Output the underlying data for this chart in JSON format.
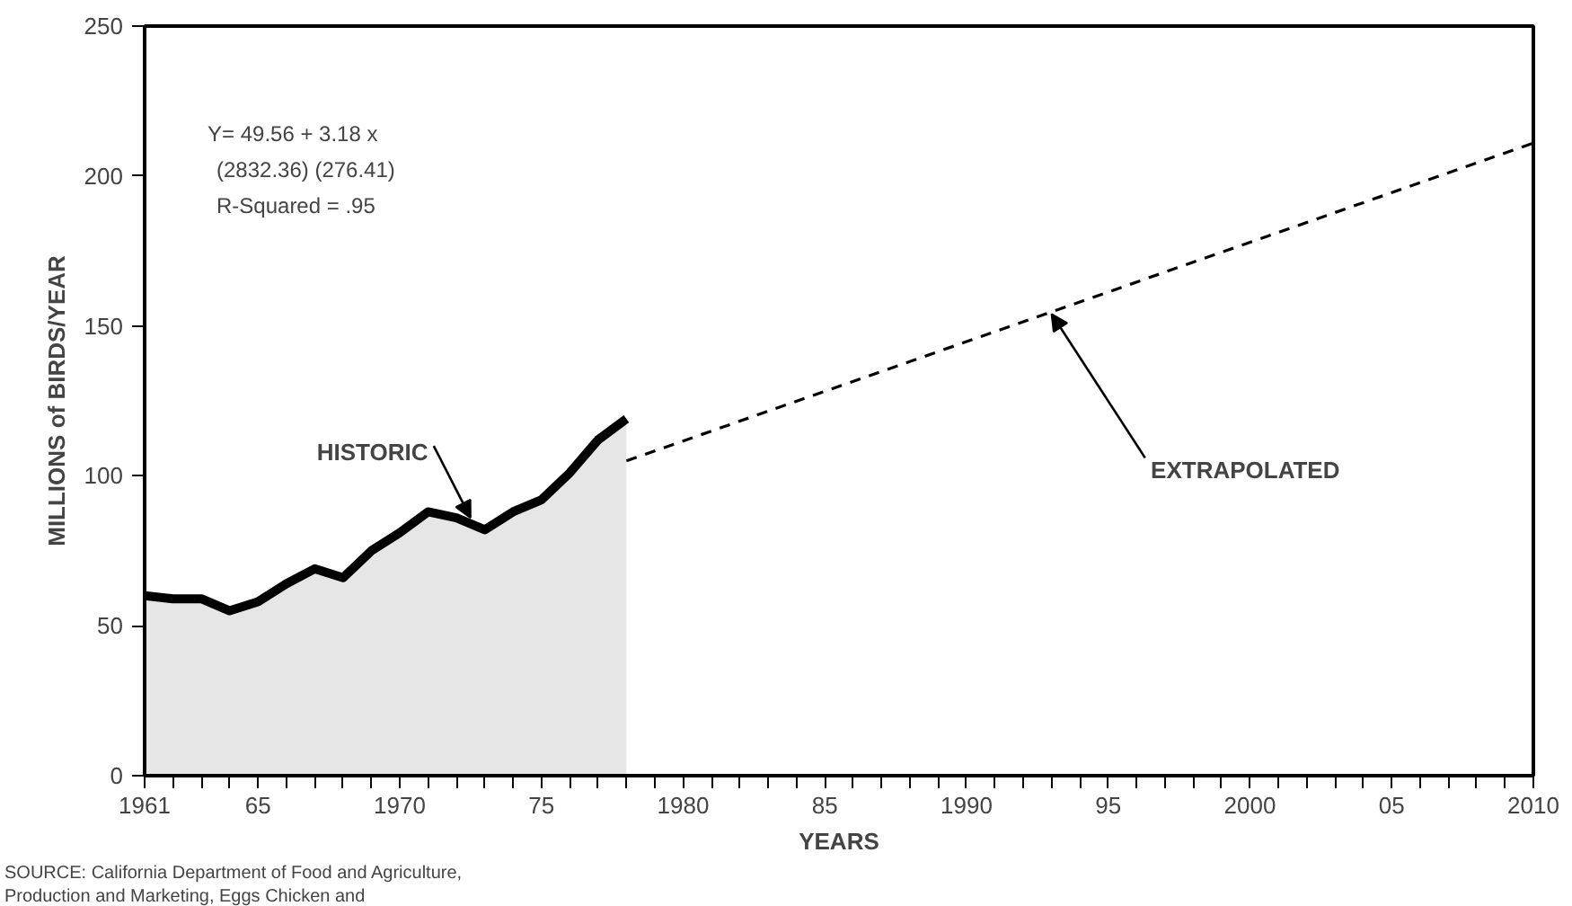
{
  "chart_data": {
    "type": "line",
    "xlabel": "YEARS",
    "ylabel": "MILLIONS of BIRDS/YEAR",
    "xlim": [
      1961,
      2010
    ],
    "ylim": [
      0,
      250
    ],
    "xticks": [
      {
        "value": 1961,
        "label": "1961"
      },
      {
        "value": 1962,
        "label": null
      },
      {
        "value": 1963,
        "label": null
      },
      {
        "value": 1964,
        "label": null
      },
      {
        "value": 1965,
        "label": "65"
      },
      {
        "value": 1966,
        "label": null
      },
      {
        "value": 1967,
        "label": null
      },
      {
        "value": 1968,
        "label": null
      },
      {
        "value": 1969,
        "label": null
      },
      {
        "value": 1970,
        "label": "1970"
      },
      {
        "value": 1971,
        "label": null
      },
      {
        "value": 1972,
        "label": null
      },
      {
        "value": 1973,
        "label": null
      },
      {
        "value": 1974,
        "label": null
      },
      {
        "value": 1975,
        "label": "75"
      },
      {
        "value": 1976,
        "label": null
      },
      {
        "value": 1977,
        "label": null
      },
      {
        "value": 1978,
        "label": null
      },
      {
        "value": 1979,
        "label": null
      },
      {
        "value": 1980,
        "label": "1980"
      },
      {
        "value": 1981,
        "label": null
      },
      {
        "value": 1982,
        "label": null
      },
      {
        "value": 1983,
        "label": null
      },
      {
        "value": 1984,
        "label": null
      },
      {
        "value": 1985,
        "label": "85"
      },
      {
        "value": 1986,
        "label": null
      },
      {
        "value": 1987,
        "label": null
      },
      {
        "value": 1988,
        "label": null
      },
      {
        "value": 1989,
        "label": null
      },
      {
        "value": 1990,
        "label": "1990"
      },
      {
        "value": 1991,
        "label": null
      },
      {
        "value": 1992,
        "label": null
      },
      {
        "value": 1993,
        "label": null
      },
      {
        "value": 1994,
        "label": null
      },
      {
        "value": 1995,
        "label": "95"
      },
      {
        "value": 1996,
        "label": null
      },
      {
        "value": 1997,
        "label": null
      },
      {
        "value": 1998,
        "label": null
      },
      {
        "value": 1999,
        "label": null
      },
      {
        "value": 2000,
        "label": "2000"
      },
      {
        "value": 2001,
        "label": null
      },
      {
        "value": 2002,
        "label": null
      },
      {
        "value": 2003,
        "label": null
      },
      {
        "value": 2004,
        "label": null
      },
      {
        "value": 2005,
        "label": "05"
      },
      {
        "value": 2006,
        "label": null
      },
      {
        "value": 2007,
        "label": null
      },
      {
        "value": 2008,
        "label": null
      },
      {
        "value": 2009,
        "label": null
      },
      {
        "value": 2010,
        "label": "2010"
      }
    ],
    "yticks": [
      0,
      50,
      100,
      150,
      200,
      250
    ],
    "grid": false,
    "series": [
      {
        "type": "area",
        "color": "#000000",
        "x": [
          1961,
          1962,
          1963,
          1964,
          1965,
          1966,
          1967,
          1968,
          1969,
          1970,
          1971,
          1972,
          1973,
          1974,
          1975,
          1976,
          1977,
          1978
        ],
        "values": [
          60,
          59,
          59,
          55,
          58,
          64,
          69,
          66,
          75,
          81,
          88,
          86,
          82,
          88,
          92,
          101,
          112,
          119
        ]
      },
      {
        "color": "#000000",
        "line_style": "dashed",
        "x": [
          1978,
          2010
        ],
        "values": [
          105,
          211
        ]
      }
    ],
    "annotations": [
      {
        "text": "HISTORIC",
        "x": 1972.5,
        "y": 86
      },
      {
        "text": "EXTRAPOLATED",
        "x": 1993,
        "y": 154
      },
      "Y= 49.56 + 3.18 x",
      "(2832.36) (276.41)",
      "R-Squared = .95",
      "SOURCE: California Department of Food and Agriculture,",
      "Production and Marketing, Eggs Chicken and"
    ]
  }
}
